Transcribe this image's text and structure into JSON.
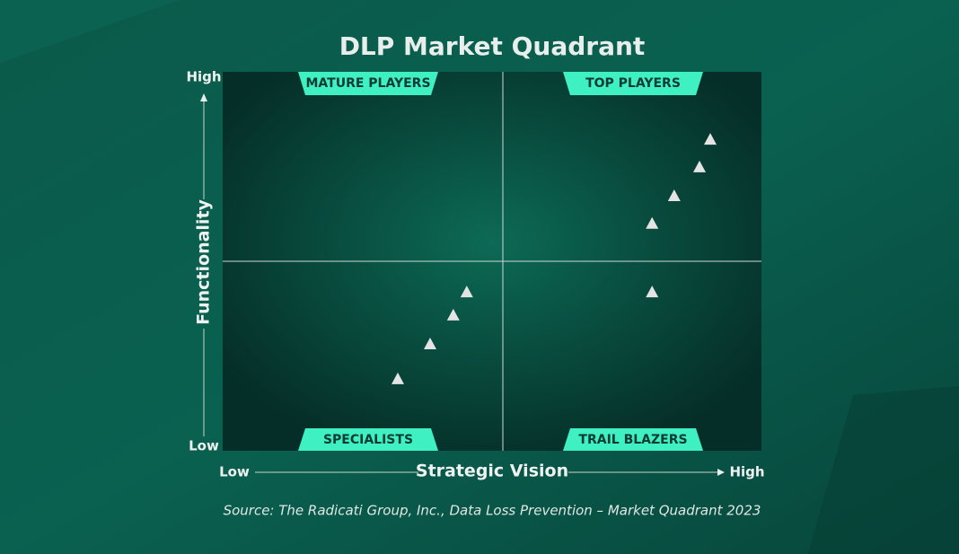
{
  "chart_data": {
    "type": "scatter",
    "title": "DLP Market Quadrant",
    "x_label": "Strategic Vision",
    "y_label": "Functionality",
    "source": "Source: The Radicati Group, Inc., Data Loss Prevention – Market Quadrant 2023",
    "quadrants": [
      "MATURE PLAYERS",
      "TOP PLAYERS",
      "SPECIALISTS",
      "TRAIL BLAZERS"
    ],
    "x": [
      90.5,
      88.5,
      83.8,
      79.7,
      79.7,
      45.3,
      42.8,
      38.5,
      32.5
    ],
    "values": [
      82.2,
      74.9,
      67.3,
      60,
      41.9,
      41.9,
      35.8,
      28.2,
      19
    ],
    "color": "#e4e4e4",
    "xlim": [
      0,
      100
    ],
    "ylim": [
      0,
      100
    ],
    "xticks": [
      {
        "value": 0,
        "label": "Low"
      },
      {
        "value": 100,
        "label": "High"
      }
    ],
    "yticks": [
      {
        "value": 0,
        "label": "Low"
      },
      {
        "value": 100,
        "label": "High"
      }
    ]
  }
}
